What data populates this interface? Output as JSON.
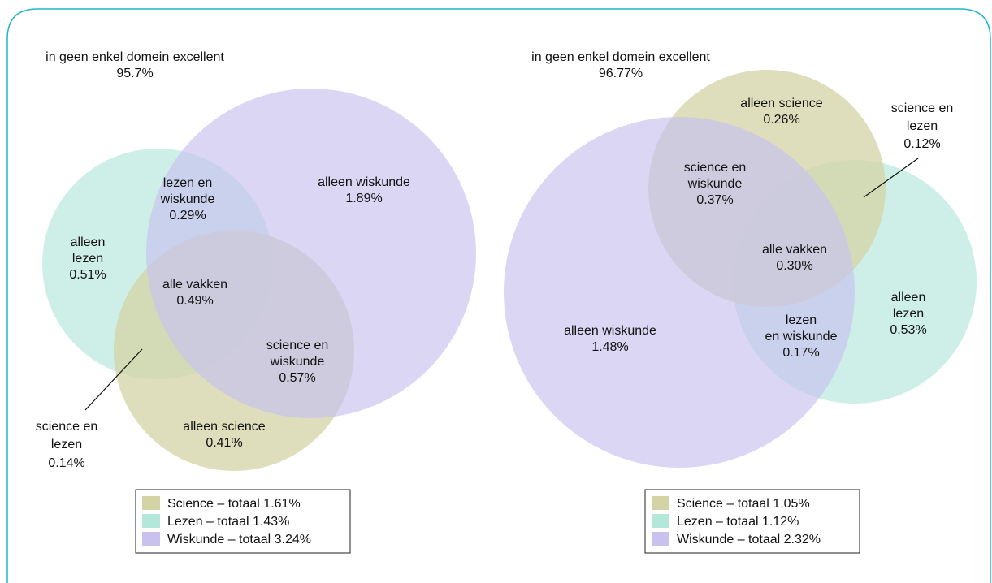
{
  "colors": {
    "frame": "#1fb6c9",
    "science": "#d3d3a6",
    "lezen": "#b3e7da",
    "wiskunde": "#c9c2ef",
    "legend_border": "#222222"
  },
  "left": {
    "top_label": "in geen enkel domein excellent",
    "top_value": "95.7%",
    "regions": {
      "alleen_wiskunde": [
        "alleen wiskunde",
        "1.89%"
      ],
      "lezen_wiskunde": [
        "lezen en",
        "wiskunde",
        "0.29%"
      ],
      "alleen_lezen": [
        "alleen",
        "lezen",
        "0.51%"
      ],
      "alle_vakken": [
        "alle vakken",
        "0.49%"
      ],
      "science_wiskunde": [
        "science en",
        "wiskunde",
        "0.57%"
      ],
      "alleen_science": [
        "alleen science",
        "0.41%"
      ],
      "science_lezen": [
        "science en",
        "lezen",
        "0.14%"
      ]
    },
    "legend": [
      "Science – totaal 1.61%",
      "Lezen – totaal 1.43%",
      "Wiskunde – totaal 3.24%"
    ]
  },
  "right": {
    "top_label": "in geen enkel domein excellent",
    "top_value": "96.77%",
    "regions": {
      "alleen_science": [
        "alleen science",
        "0.26%"
      ],
      "science_lezen": [
        "science en",
        "lezen",
        "0.12%"
      ],
      "science_wiskunde": [
        "science en",
        "wiskunde",
        "0.37%"
      ],
      "alle_vakken": [
        "alle vakken",
        "0.30%"
      ],
      "alleen_wiskunde": [
        "alleen wiskunde",
        "1.48%"
      ],
      "lezen_wiskunde": [
        "lezen",
        "en wiskunde",
        "0.17%"
      ],
      "alleen_lezen": [
        "alleen",
        "lezen",
        "0.53%"
      ]
    },
    "legend": [
      "Science – totaal 1.05%",
      "Lezen – totaal 1.12%",
      "Wiskunde – totaal 2.32%"
    ]
  }
}
